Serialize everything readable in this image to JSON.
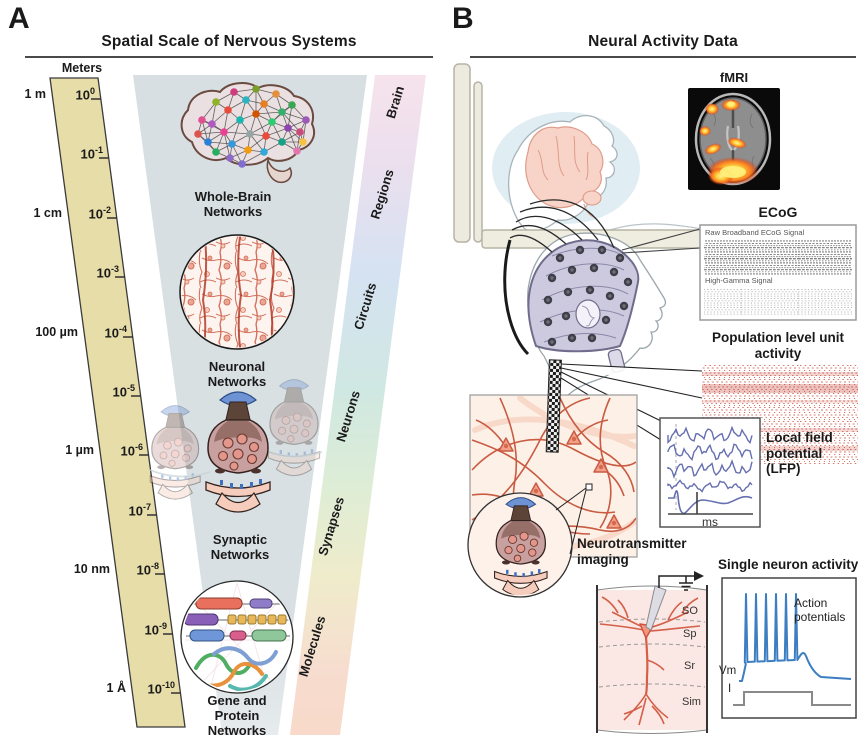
{
  "panelA": {
    "label": "A",
    "title": "Spatial Scale of Nervous Systems",
    "ruler": {
      "header": "Meters",
      "ticks": [
        {
          "base": "10",
          "exp": "0",
          "side": "1 m"
        },
        {
          "base": "10",
          "exp": "-1",
          "side": ""
        },
        {
          "base": "10",
          "exp": "-2",
          "side": "1 cm"
        },
        {
          "base": "10",
          "exp": "-3",
          "side": ""
        },
        {
          "base": "10",
          "exp": "-4",
          "side": "100 µm"
        },
        {
          "base": "10",
          "exp": "-5",
          "side": ""
        },
        {
          "base": "10",
          "exp": "-6",
          "side": "1 µm"
        },
        {
          "base": "10",
          "exp": "-7",
          "side": ""
        },
        {
          "base": "10",
          "exp": "-8",
          "side": "10 nm"
        },
        {
          "base": "10",
          "exp": "-9",
          "side": ""
        },
        {
          "base": "10",
          "exp": "-10",
          "side": "1 Å"
        }
      ]
    },
    "levels": [
      {
        "name": "Whole-Brain Networks"
      },
      {
        "name": "Neuronal Networks"
      },
      {
        "name": "Synaptic Networks"
      },
      {
        "name": "Gene and Protein Networks"
      }
    ],
    "scale_bar": [
      "Brain",
      "Regions",
      "Circuits",
      "Neurons",
      "Synapses",
      "Molecules"
    ]
  },
  "panelB": {
    "label": "B",
    "title": "Neural Activity Data",
    "fmri_label": "fMRI",
    "ecog": {
      "title": "ECoG",
      "raw_label": "Raw Broadband ECoG Signal",
      "hg_label": "High-Gamma Signal"
    },
    "population_label": "Population level unit activity",
    "lfp": {
      "label": "Local field potential (LFP)",
      "axis_label": "ms"
    },
    "neurotransmitter_label": "Neurotransmitter imaging",
    "layers": [
      "SO",
      "Sp",
      "Sr",
      "Sim"
    ],
    "single_neuron": {
      "title": "Single neuron activity",
      "annotation": "Action potentials",
      "vm_label": "Vm",
      "i_label": "I"
    }
  },
  "colors": {
    "ruler_tan": "#e7dda9",
    "funnel_grey": "#d9e0e3",
    "raster_red": "#c5402c",
    "lfp_blue": "#666fb0",
    "spike_blue": "#3d7ec2",
    "cap_lavender": "#cdcadf",
    "neuron_red": "#c95b43",
    "bar_gradient": [
      "#f6e3ec",
      "#d5e2f2",
      "#d0e8e2",
      "#efeccb",
      "#f8d9ca"
    ]
  }
}
